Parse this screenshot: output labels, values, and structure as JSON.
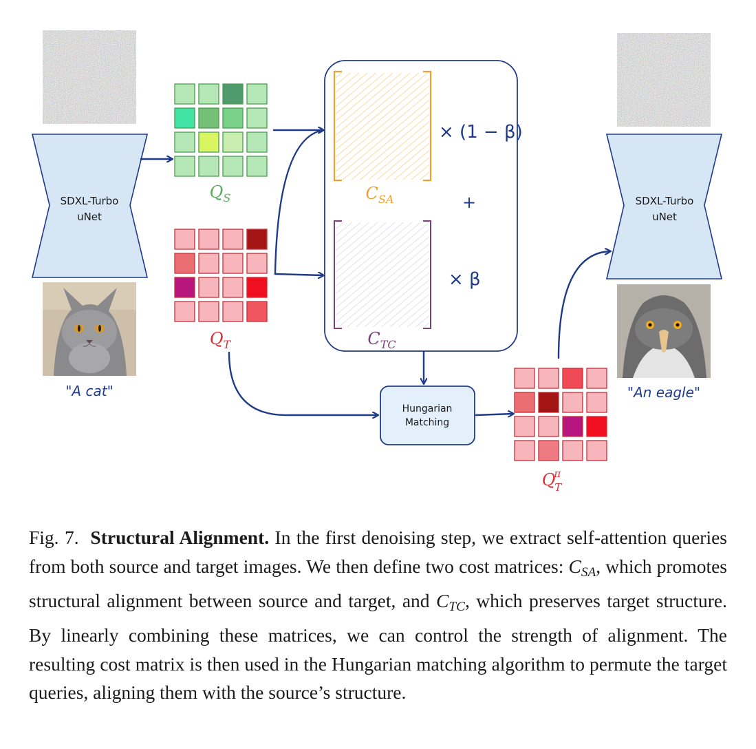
{
  "figure": {
    "source_unet_label": [
      "SDXL-Turbo",
      "uNet"
    ],
    "target_unet_label": [
      "SDXL-Turbo",
      "uNet"
    ],
    "source_prompt": "\"A cat\"",
    "target_prompt": "\"An eagle\"",
    "q_s_label": {
      "base": "Q",
      "sub": "S"
    },
    "q_t_label": {
      "base": "Q",
      "sub": "T"
    },
    "q_t_pi_label": {
      "base": "Q",
      "sub": "T",
      "sup": "π"
    },
    "c_sa_label": {
      "base": "C",
      "sub": "SA"
    },
    "c_tc_label": {
      "base": "C",
      "sub": "TC"
    },
    "mult_one_minus_beta": "× (1 − β)",
    "plus_sign": "+",
    "mult_beta": "× β",
    "hungarian_label": [
      "Hungarian",
      "Matching"
    ],
    "colors": {
      "arrow": "#1f3a8a",
      "unet_fill": "#d6e6f5",
      "q_s_label": "#5cab62",
      "q_t_label": "#d9323a",
      "c_sa": "#f0a030",
      "c_tc": "#7b3f7b",
      "hungarian_fill": "#e3f0fb"
    },
    "q_s_grid": [
      [
        "#b6e7b7",
        "#b6e7b7",
        "#4f9a6e",
        "#b6e7b7"
      ],
      [
        "#42e4a6",
        "#74c076",
        "#7ad28a",
        "#b6e7b7"
      ],
      [
        "#b6e7b7",
        "#d9f562",
        "#c9eeb0",
        "#b6e7b7"
      ],
      [
        "#b6e7b7",
        "#b6e7b7",
        "#b6e7b7",
        "#b6e7b7"
      ]
    ],
    "q_t_grid": [
      [
        "#f6b6bc",
        "#f6b6bc",
        "#f6b6bc",
        "#a31515"
      ],
      [
        "#ea6f72",
        "#f6b6bc",
        "#f6b6bc",
        "#f6b6bc"
      ],
      [
        "#b8167e",
        "#f6b6bc",
        "#f6b6bc",
        "#ef0f1f"
      ],
      [
        "#f6b6bc",
        "#f6b6bc",
        "#f6b6bc",
        "#f0565f"
      ]
    ],
    "q_t_pi_grid": [
      [
        "#f6b6bc",
        "#f6b6bc",
        "#ef4a55",
        "#f6b6bc"
      ],
      [
        "#ea6f72",
        "#a31515",
        "#f6b6bc",
        "#f6b6bc"
      ],
      [
        "#f6b6bc",
        "#f6b6bc",
        "#b8167e",
        "#ef0f1f"
      ],
      [
        "#f6b6bc",
        "#ee7b82",
        "#f6b6bc",
        "#f6b6bc"
      ]
    ]
  },
  "caption": {
    "fig_number": "Fig. 7.",
    "title": "Structural Alignment.",
    "part1": "In the first denoising step, we extract self-attention queries from both source and target images. We then define two cost matrices:",
    "c_sa": {
      "base": "C",
      "sub": "SA"
    },
    "part2": ", which promotes structural alignment between source and target, and",
    "c_tc": {
      "base": "C",
      "sub": "TC"
    },
    "part3": ", which preserves target structure. By linearly combining these matrices, we can control the strength of alignment. The resulting cost matrix is then used in the Hungarian matching algorithm to permute the target queries, aligning them with the source’s structure."
  }
}
